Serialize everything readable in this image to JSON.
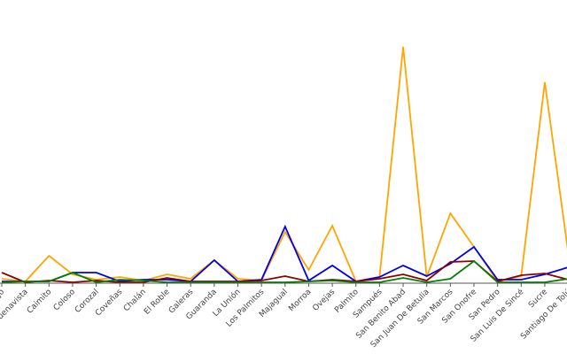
{
  "chart_data": {
    "type": "line",
    "title": "",
    "xlabel": "",
    "ylabel": "",
    "ylim": [
      0,
      270
    ],
    "grid": false,
    "categories": [
      "Sincelejo",
      "Buenavista",
      "Caimito",
      "Coloso",
      "Corozal",
      "Coveñas",
      "Chalán",
      "El Roble",
      "Galeras",
      "Guaranda",
      "La Unión",
      "Los Palmitos",
      "Majagual",
      "Morroa",
      "Ovejas",
      "Palmito",
      "Sampués",
      "San Benito Abad",
      "San Juan De Betulia",
      "San Marcos",
      "San Onofre",
      "San Pedro",
      "San Luis De Sincé",
      "Sucre",
      "Santiago De Tolú"
    ],
    "series": [
      {
        "color": "#FFA500",
        "values": [
          5,
          2,
          31,
          10,
          4,
          7,
          3,
          10,
          5,
          26,
          5,
          3,
          58,
          15,
          65,
          2,
          7,
          267,
          7,
          79,
          41,
          2,
          8,
          227,
          33
        ]
      },
      {
        "color": "#0000EE",
        "values": [
          2,
          2,
          2,
          12,
          12,
          2,
          4,
          4,
          2,
          26,
          2,
          4,
          64,
          3,
          20,
          2,
          7,
          20,
          8,
          22,
          41,
          4,
          4,
          10,
          18
        ]
      },
      {
        "color": "#8B0000",
        "values": [
          12,
          1,
          3,
          1,
          3,
          1,
          1,
          6,
          2,
          2,
          2,
          3,
          8,
          2,
          4,
          2,
          5,
          10,
          3,
          24,
          25,
          2,
          9,
          11,
          4
        ]
      },
      {
        "color": "#008000",
        "values": [
          1,
          2,
          2,
          12,
          1,
          4,
          3,
          1,
          1,
          1,
          1,
          1,
          1,
          2,
          3,
          1,
          1,
          6,
          1,
          5,
          25,
          1,
          1,
          1,
          5
        ]
      }
    ]
  }
}
